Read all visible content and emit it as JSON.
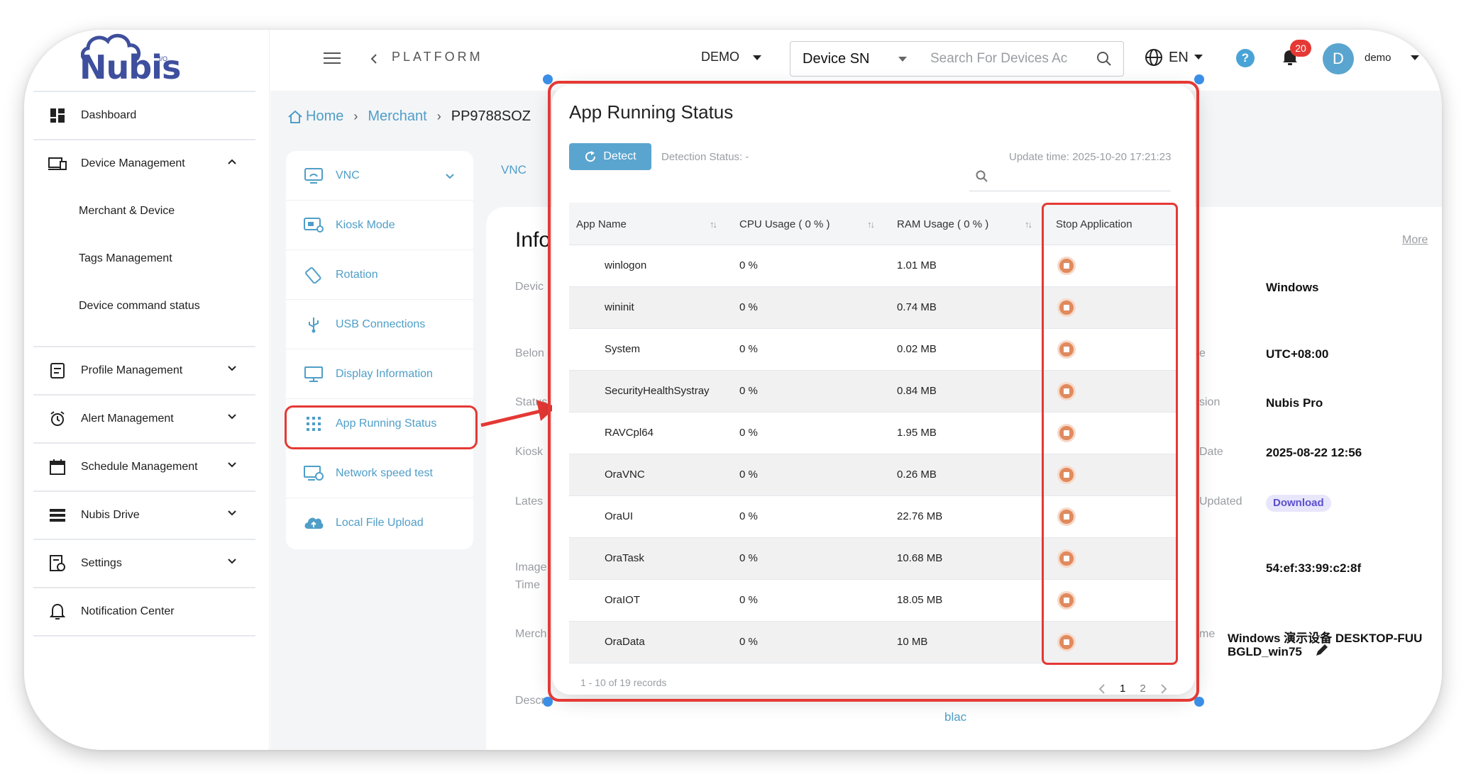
{
  "brand": {
    "logo_text": "Nubis",
    "logo_io": "I/O"
  },
  "sidebar": {
    "items": [
      {
        "label": "Dashboard"
      },
      {
        "label": "Device Management"
      },
      {
        "label": "Merchant & Device"
      },
      {
        "label": "Tags Management"
      },
      {
        "label": "Device command status"
      },
      {
        "label": "Profile Management"
      },
      {
        "label": "Alert Management"
      },
      {
        "label": "Schedule Management"
      },
      {
        "label": "Nubis Drive"
      },
      {
        "label": "Settings"
      },
      {
        "label": "Notification Center"
      }
    ]
  },
  "header": {
    "platform": "PLATFORM",
    "org": "DEMO",
    "search_type": "Device SN",
    "search_placeholder": "Search For Devices Ac",
    "lang": "EN",
    "help": "?",
    "notif_count": "20",
    "avatar": "D",
    "user": "demo"
  },
  "breadcrumb": {
    "home": "Home",
    "merchant": "Merchant",
    "device": "PP9788SOZ"
  },
  "submenu": {
    "items": [
      {
        "label": "VNC"
      },
      {
        "label": "Kiosk Mode"
      },
      {
        "label": "Rotation"
      },
      {
        "label": "USB Connections"
      },
      {
        "label": "Display Information"
      },
      {
        "label": "App Running Status"
      },
      {
        "label": "Network speed test"
      },
      {
        "label": "Local File Upload"
      }
    ]
  },
  "background": {
    "tab": "VNC",
    "info_title": "Info",
    "more": "More",
    "labels": {
      "device": "Devic",
      "belong": "Belon",
      "status": "Status",
      "kiosk": "Kiosk",
      "latest": "Lates",
      "image": "Image",
      "time": "Time",
      "merchant": "Merch",
      "desc": "Descr",
      "r1": "e",
      "r2": "sion",
      "r3": "Date",
      "r4": "Updated",
      "r5": "me"
    },
    "values": {
      "os": "Windows",
      "tz": "UTC+08:00",
      "edition": "Nubis Pro",
      "date": "2025-08-22 12:56",
      "download": "Download",
      "mac": "54:ef:33:99:c2:8f",
      "name_line1": "Windows 演示设备 DESKTOP-FUU",
      "name_line2": "BGLD_win75",
      "blac": "blac"
    }
  },
  "modal": {
    "title": "App Running Status",
    "detect": "Detect",
    "detection_status": "Detection Status: -",
    "update_time": "Update time: 2025-10-20 17:21:23",
    "columns": {
      "app": "App Name",
      "cpu": "CPU Usage ( 0 % )",
      "ram": "RAM Usage ( 0 % )",
      "stop": "Stop Application"
    },
    "rows": [
      {
        "name": "winlogon",
        "cpu": "0 %",
        "ram": "1.01 MB"
      },
      {
        "name": "wininit",
        "cpu": "0 %",
        "ram": "0.74 MB"
      },
      {
        "name": "System",
        "cpu": "0 %",
        "ram": "0.02 MB"
      },
      {
        "name": "SecurityHealthSystray",
        "cpu": "0 %",
        "ram": "0.84 MB"
      },
      {
        "name": "RAVCpl64",
        "cpu": "0 %",
        "ram": "1.95 MB"
      },
      {
        "name": "OraVNC",
        "cpu": "0 %",
        "ram": "0.26 MB"
      },
      {
        "name": "OraUI",
        "cpu": "0 %",
        "ram": "22.76 MB"
      },
      {
        "name": "OraTask",
        "cpu": "0 %",
        "ram": "10.68 MB"
      },
      {
        "name": "OraIOT",
        "cpu": "0 %",
        "ram": "18.05 MB"
      },
      {
        "name": "OraData",
        "cpu": "0 %",
        "ram": "10 MB"
      }
    ],
    "records": "1 - 10 of 19 records",
    "pages": [
      "1",
      "2"
    ]
  },
  "colors": {
    "accent": "#4f9ec8",
    "highlight": "#e53935",
    "stop": "#e08a5e",
    "brand": "#3e4f9d"
  }
}
